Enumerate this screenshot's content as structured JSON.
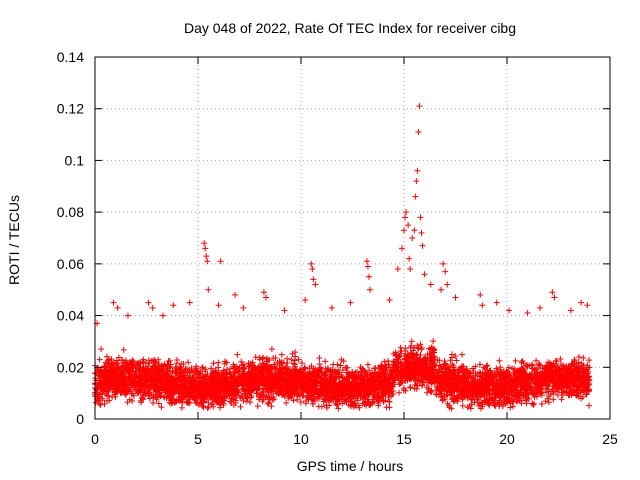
{
  "chart_data": {
    "type": "scatter",
    "title": "Day 048 of 2022, Rate Of TEC Index for receiver cibg",
    "xlabel": "GPS time / hours",
    "ylabel": "ROTI / TECUs",
    "xlim": [
      0,
      25
    ],
    "ylim": [
      0,
      0.14
    ],
    "xticks": [
      0,
      5,
      10,
      15,
      20,
      25
    ],
    "xtick_labels": [
      "0",
      "5",
      "10",
      "15",
      "20",
      "25"
    ],
    "yticks": [
      0,
      0.02,
      0.04,
      0.06,
      0.08,
      0.1,
      0.12,
      0.14
    ],
    "ytick_labels": [
      "0",
      "0.02",
      "0.04",
      "0.06",
      "0.08",
      "0.1",
      "0.12",
      "0.14"
    ],
    "grid": true,
    "marker": "plus",
    "color": "#ff0000",
    "series": [
      {
        "name": "ROTI",
        "description": "dense band 0.005-0.03 TECU/s from 0 to 24 h with spikes",
        "points": [
          [
            0.1,
            0.037
          ],
          [
            0.3,
            0.027
          ],
          [
            0.9,
            0.045
          ],
          [
            1.1,
            0.043
          ],
          [
            1.6,
            0.04
          ],
          [
            2.6,
            0.045
          ],
          [
            2.8,
            0.043
          ],
          [
            3.3,
            0.04
          ],
          [
            3.8,
            0.044
          ],
          [
            4.6,
            0.045
          ],
          [
            5.3,
            0.068
          ],
          [
            5.35,
            0.066
          ],
          [
            5.4,
            0.063
          ],
          [
            5.45,
            0.061
          ],
          [
            5.5,
            0.05
          ],
          [
            6.1,
            0.061
          ],
          [
            6.0,
            0.044
          ],
          [
            6.8,
            0.048
          ],
          [
            7.2,
            0.043
          ],
          [
            8.2,
            0.049
          ],
          [
            8.3,
            0.047
          ],
          [
            9.2,
            0.042
          ],
          [
            10.2,
            0.046
          ],
          [
            10.5,
            0.06
          ],
          [
            10.55,
            0.058
          ],
          [
            10.6,
            0.054
          ],
          [
            10.7,
            0.052
          ],
          [
            11.5,
            0.043
          ],
          [
            12.4,
            0.045
          ],
          [
            13.2,
            0.061
          ],
          [
            13.25,
            0.059
          ],
          [
            13.3,
            0.055
          ],
          [
            13.35,
            0.05
          ],
          [
            14.3,
            0.046
          ],
          [
            14.7,
            0.058
          ],
          [
            14.9,
            0.066
          ],
          [
            15.0,
            0.073
          ],
          [
            15.05,
            0.078
          ],
          [
            15.1,
            0.08
          ],
          [
            15.2,
            0.075
          ],
          [
            15.25,
            0.062
          ],
          [
            15.3,
            0.058
          ],
          [
            15.4,
            0.07
          ],
          [
            15.5,
            0.073
          ],
          [
            15.55,
            0.086
          ],
          [
            15.6,
            0.092
          ],
          [
            15.65,
            0.096
          ],
          [
            15.7,
            0.111
          ],
          [
            15.75,
            0.121
          ],
          [
            15.8,
            0.078
          ],
          [
            15.85,
            0.072
          ],
          [
            15.9,
            0.067
          ],
          [
            16.0,
            0.056
          ],
          [
            16.3,
            0.052
          ],
          [
            16.8,
            0.05
          ],
          [
            16.9,
            0.06
          ],
          [
            17.0,
            0.057
          ],
          [
            17.1,
            0.052
          ],
          [
            17.5,
            0.047
          ],
          [
            18.7,
            0.048
          ],
          [
            18.8,
            0.044
          ],
          [
            19.5,
            0.045
          ],
          [
            20.1,
            0.042
          ],
          [
            21.0,
            0.041
          ],
          [
            21.6,
            0.043
          ],
          [
            22.2,
            0.049
          ],
          [
            22.3,
            0.047
          ],
          [
            23.1,
            0.042
          ],
          [
            23.6,
            0.045
          ],
          [
            23.9,
            0.044
          ],
          [
            17.3,
            0.004
          ],
          [
            7.9,
            0.005
          ],
          [
            3.1,
            0.006
          ],
          [
            12.0,
            0.006
          ],
          [
            19.8,
            0.005
          ]
        ]
      }
    ]
  }
}
